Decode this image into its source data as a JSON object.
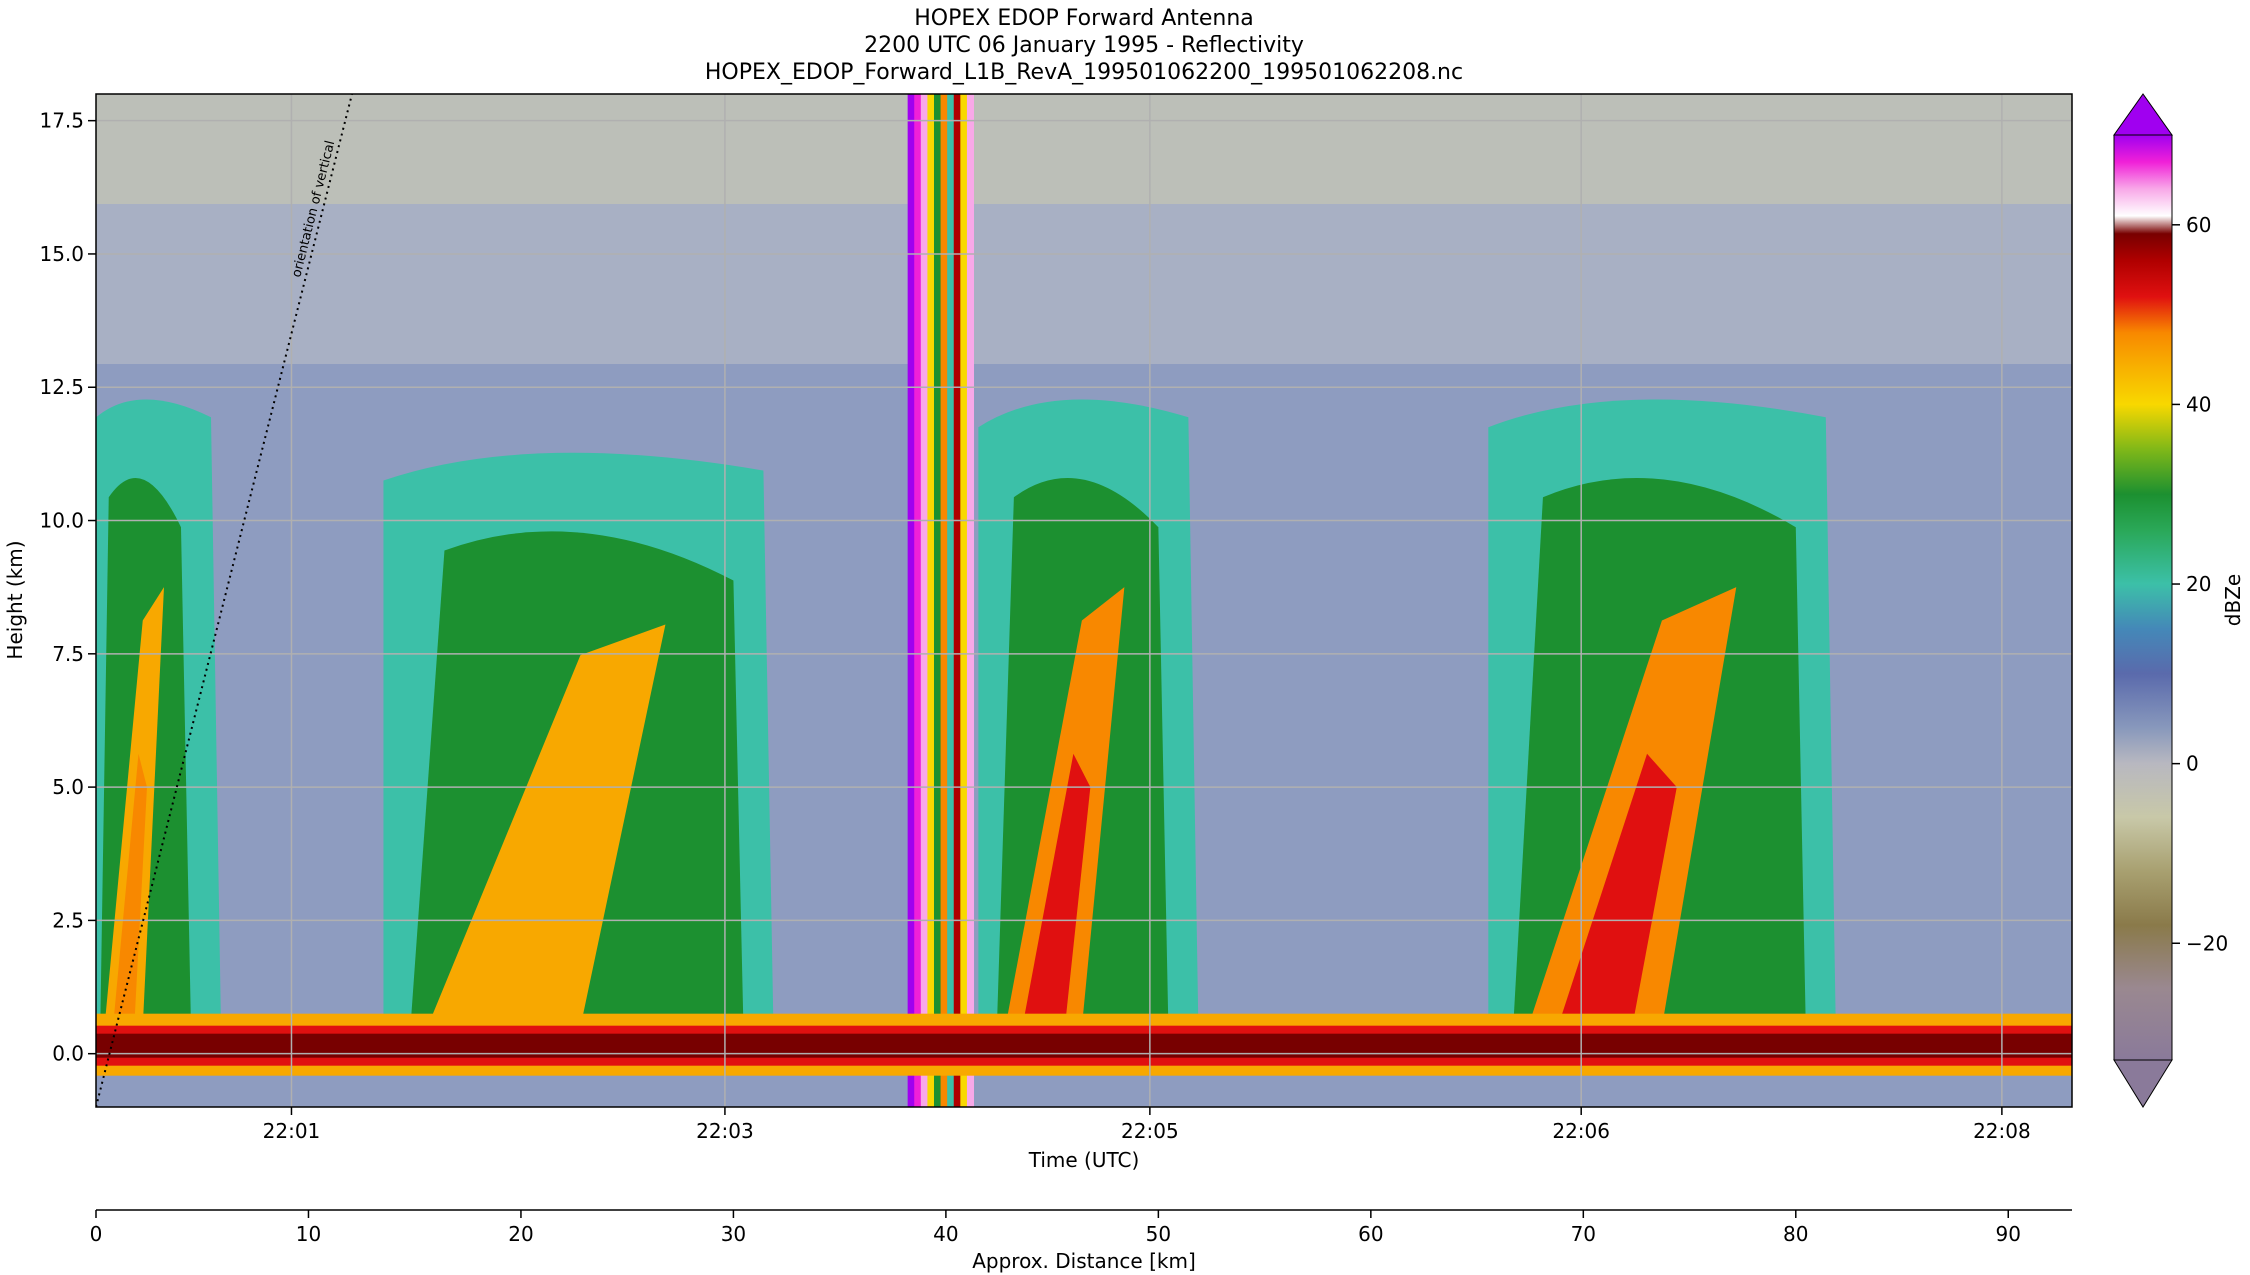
{
  "chart_data": {
    "type": "heatmap",
    "title_lines": [
      "HOPEX EDOP Forward Antenna",
      "2200 UTC 06 January 1995 - Reflectivity",
      "HOPEX_EDOP_Forward_L1B_RevA_199501062200_199501062208.nc"
    ],
    "xlabel": "Time (UTC)",
    "ylabel": "Height (km)",
    "x2label": "Approx. Distance [km]",
    "colorbar_label": "dBZe",
    "annotation": "orientation of vertical",
    "xlim_distance": [
      0,
      93
    ],
    "ylim": [
      -1,
      18
    ],
    "yticks": [
      0.0,
      2.5,
      5.0,
      7.5,
      10.0,
      12.5,
      15.0,
      17.5
    ],
    "ytick_labels": [
      "0.0",
      "2.5",
      "5.0",
      "7.5",
      "10.0",
      "12.5",
      "15.0",
      "17.5"
    ],
    "time_ticks": [
      {
        "label": "22:01",
        "distance": 9.2
      },
      {
        "label": "22:03",
        "distance": 29.6
      },
      {
        "label": "22:05",
        "distance": 49.6
      },
      {
        "label": "22:06",
        "distance": 69.9
      },
      {
        "label": "22:08",
        "distance": 89.7
      }
    ],
    "distance_ticks": [
      0,
      10,
      20,
      30,
      40,
      50,
      60,
      70,
      80,
      90
    ],
    "distance_tick_labels": [
      "0",
      "10",
      "20",
      "30",
      "40",
      "50",
      "60",
      "70",
      "80",
      "90"
    ],
    "colorbar_range": [
      -33,
      70
    ],
    "colorbar_ticks": [
      -20,
      0,
      20,
      40,
      60
    ],
    "colorbar_tick_labels": [
      "−20",
      "0",
      "20",
      "40",
      "60"
    ],
    "colormap": [
      {
        "v": -33,
        "c": "#8a7a9a"
      },
      {
        "v": -25,
        "c": "#9a8890"
      },
      {
        "v": -18,
        "c": "#8a7a4a"
      },
      {
        "v": -12,
        "c": "#a8a070"
      },
      {
        "v": -6,
        "c": "#c8c8a8"
      },
      {
        "v": 0,
        "c": "#b8b8c0"
      },
      {
        "v": 4,
        "c": "#8898bc"
      },
      {
        "v": 10,
        "c": "#5a6aac"
      },
      {
        "v": 15,
        "c": "#4488b8"
      },
      {
        "v": 20,
        "c": "#3cc0a8"
      },
      {
        "v": 26,
        "c": "#2aa858"
      },
      {
        "v": 30,
        "c": "#1c9030"
      },
      {
        "v": 35,
        "c": "#80b818"
      },
      {
        "v": 40,
        "c": "#f8d800"
      },
      {
        "v": 45,
        "c": "#f8a800"
      },
      {
        "v": 48,
        "c": "#f88800"
      },
      {
        "v": 52,
        "c": "#e01010"
      },
      {
        "v": 56,
        "c": "#b00000"
      },
      {
        "v": 59,
        "c": "#780000"
      },
      {
        "v": 61,
        "c": "#ffffff"
      },
      {
        "v": 64,
        "c": "#f8a8e8"
      },
      {
        "v": 67,
        "c": "#f020d8"
      },
      {
        "v": 70,
        "c": "#a000f0"
      }
    ],
    "series": [
      {
        "name": "melting/surface band",
        "height_km": 0.0,
        "dbze": 56,
        "x_range": [
          0,
          93
        ]
      },
      {
        "name": "convective cell A",
        "distance": [
          0,
          4
        ],
        "top_km": 12.5,
        "core_dbze": 44
      },
      {
        "name": "convective cell B",
        "distance": [
          14,
          30
        ],
        "top_km": 11.5,
        "core_dbze": 42
      },
      {
        "name": "convective cell C",
        "distance": [
          42,
          50
        ],
        "top_km": 12.5,
        "core_dbze": 48
      },
      {
        "name": "convective cell D",
        "distance": [
          66,
          80
        ],
        "top_km": 12.5,
        "core_dbze": 46
      },
      {
        "name": "saturated columns",
        "distance": [
          38.2,
          41.3
        ],
        "dbze": 65
      }
    ]
  }
}
